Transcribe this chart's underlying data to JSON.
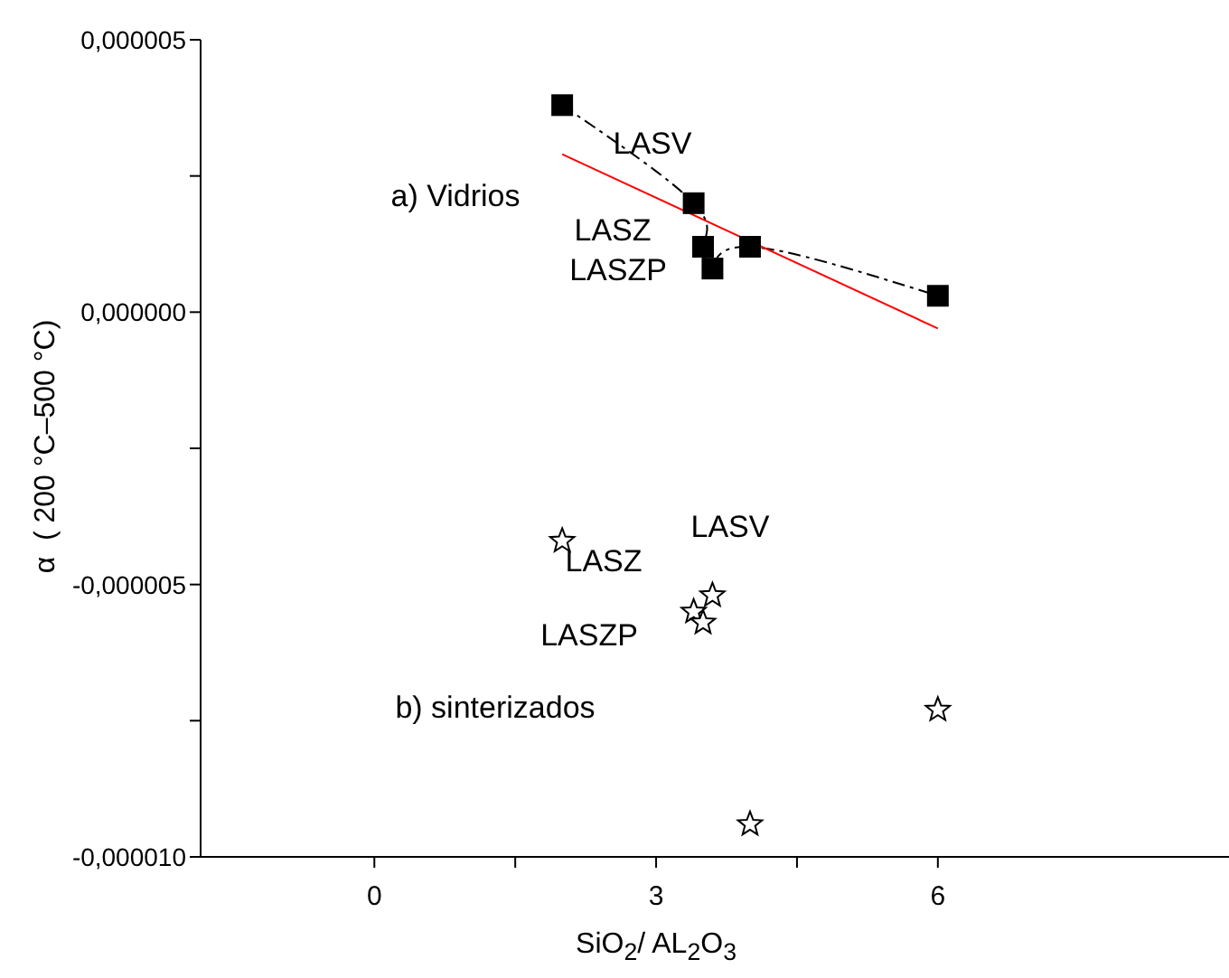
{
  "chart_data": {
    "type": "scatter",
    "xlabel": "SiO$_{2}$/ AL$_{2}$O$_{3}$",
    "ylabel": "α  ( 200 °C–500 °C)",
    "xlim": [
      -1.85,
      9.1
    ],
    "ylim": [
      -1e-05,
      5e-06
    ],
    "xticks": [
      0,
      {
        "value": 1.5,
        "label": null
      },
      3,
      {
        "value": 4.5,
        "label": null
      },
      6
    ],
    "yticks": [
      {
        "value": -1e-05,
        "label": "-0,000010"
      },
      {
        "value": -7.5e-06,
        "label": null
      },
      {
        "value": -5e-06,
        "label": "-0,000005"
      },
      {
        "value": -2.5e-06,
        "label": null
      },
      {
        "value": 0,
        "label": "0,000000"
      },
      {
        "value": 2.5e-06,
        "label": null
      },
      {
        "value": 5e-06,
        "label": "0,000005"
      }
    ],
    "series": [
      {
        "type": "line",
        "color": "#000000",
        "marker": "square",
        "line_style": "dashed",
        "x": [
          2,
          3.4,
          3.5,
          3.6,
          4,
          6
        ],
        "values": [
          3.8e-06,
          2e-06,
          1.2e-06,
          8e-07,
          1.2e-06,
          3e-07
        ]
      },
      {
        "type": "line",
        "color": "#ff0000",
        "marker": "none",
        "line_style": "solid",
        "x": [
          2,
          6
        ],
        "values": [
          2.9e-06,
          -3e-07
        ]
      },
      {
        "color": "#000000",
        "marker": "star",
        "x": [
          2,
          3.4,
          3.5,
          3.6,
          4,
          6
        ],
        "values": [
          -4.2e-06,
          -5.5e-06,
          -5.7e-06,
          -5.2e-06,
          -9.4e-06,
          -7.3e-06
        ]
      }
    ],
    "annotations": [
      "a) Vidrios",
      "LASV",
      "LASZ",
      "LASZP",
      "LASV",
      "LASZ",
      "LASZP",
      "b) sinterizados"
    ]
  }
}
